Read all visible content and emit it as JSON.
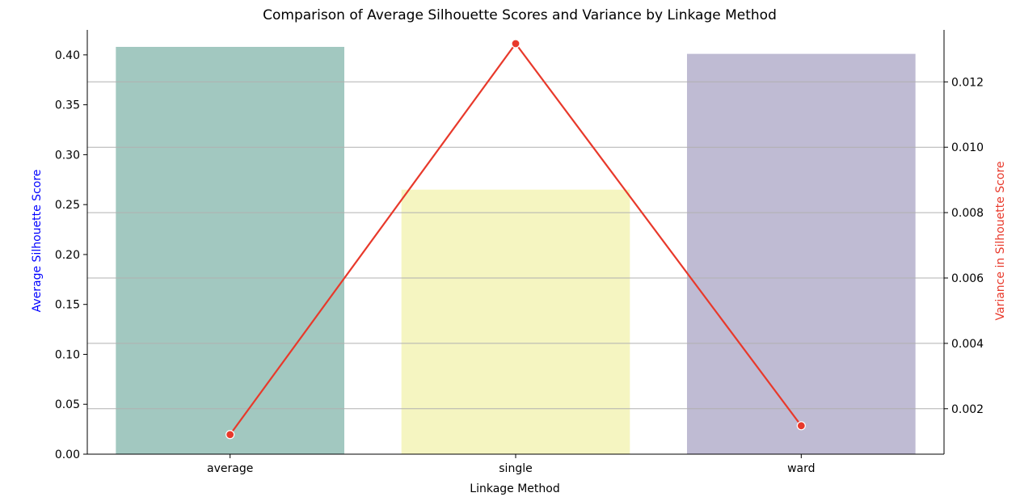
{
  "chart_data": {
    "type": "bar",
    "title": "Comparison of Average Silhouette Scores and Variance by Linkage Method",
    "xlabel": "Linkage Method",
    "ylabel": "Average Silhouette Score",
    "y2label": "Variance in Silhouette Score",
    "categories": [
      "average",
      "single",
      "ward"
    ],
    "series": [
      {
        "type": "bar",
        "axis": "left",
        "values": [
          0.408,
          0.265,
          0.401
        ],
        "colors": [
          "#a2c8c0",
          "#f5f5c1",
          "#bfbbd3"
        ]
      },
      {
        "type": "line",
        "axis": "right",
        "values": [
          0.00121,
          0.01317,
          0.00148
        ],
        "color": "#e8392b"
      }
    ],
    "ylim": [
      0,
      0.425
    ],
    "y2lim": [
      0.00061,
      0.01359
    ],
    "yticks": [
      "0.00",
      "0.05",
      "0.10",
      "0.15",
      "0.20",
      "0.25",
      "0.30",
      "0.35",
      "0.40"
    ],
    "y2ticks": [
      "0.002",
      "0.004",
      "0.006",
      "0.008",
      "0.010",
      "0.012"
    ],
    "grid": "right-axis horizontal",
    "ylabel_color": "#0000ff",
    "y2label_color": "#e8392b"
  }
}
